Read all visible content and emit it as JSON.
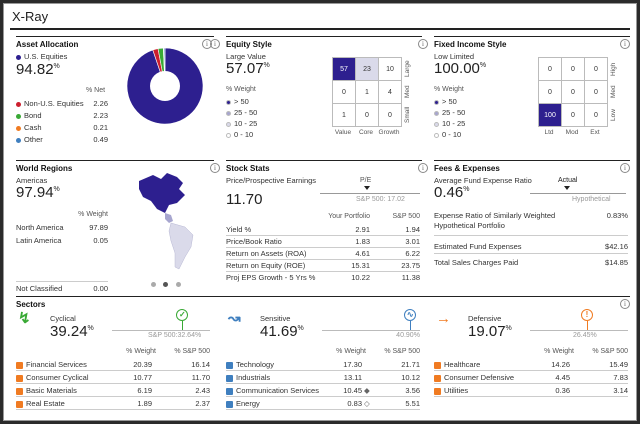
{
  "title": "X-Ray",
  "colors": {
    "navy": "#2d1f8f",
    "mid": "#a7a6cf",
    "light": "#dadaea",
    "red": "#cc1f2e",
    "orange": "#f07b22",
    "green": "#39a935",
    "blue": "#3f7fbf",
    "gray": "#888888"
  },
  "asset": {
    "title": "Asset Allocation",
    "main_label": "U.S. Equities",
    "main_value": "94.82",
    "pct": "%",
    "col": "% Net",
    "rows": [
      {
        "label": "Non-U.S. Equities",
        "value": "2.26",
        "color": "#cc1f2e"
      },
      {
        "label": "Bond",
        "value": "2.23",
        "color": "#39a935"
      },
      {
        "label": "Cash",
        "value": "0.21",
        "color": "#f07b22"
      },
      {
        "label": "Other",
        "value": "0.49",
        "color": "#3f7fbf"
      }
    ],
    "donut": [
      94.82,
      2.26,
      2.23,
      0.21,
      0.49
    ]
  },
  "equity": {
    "title": "Equity Style",
    "label": "Large Value",
    "value": "57.07",
    "pct": "%",
    "weight_label": "% Weight",
    "legend": [
      "> 50",
      "25 - 50",
      "10 - 25",
      "0 - 10"
    ],
    "grid": [
      "57",
      "23",
      "10",
      "0",
      "1",
      "4",
      "1",
      "0",
      "0"
    ],
    "cols": [
      "Value",
      "Core",
      "Growth"
    ],
    "rows": [
      "Large",
      "Med",
      "Small"
    ]
  },
  "fixed": {
    "title": "Fixed Income Style",
    "label": "Low Limited",
    "value": "100.00",
    "pct": "%",
    "weight_label": "% Weight",
    "legend": [
      "> 50",
      "25 - 50",
      "10 - 25",
      "0 - 10"
    ],
    "grid": [
      "0",
      "0",
      "0",
      "0",
      "0",
      "0",
      "100",
      "0",
      "0"
    ],
    "cols": [
      "Ltd",
      "Mod",
      "Ext"
    ],
    "rows": [
      "High",
      "Med",
      "Low"
    ]
  },
  "regions": {
    "title": "World Regions",
    "label": "Americas",
    "value": "97.94",
    "pct": "%",
    "col": "% Weight",
    "rows": [
      {
        "label": "North America",
        "value": "97.89"
      },
      {
        "label": "Latin America",
        "value": "0.05"
      }
    ],
    "not_classified": "Not Classified",
    "not_classified_value": "0.00"
  },
  "stock": {
    "title": "Stock Stats",
    "pe_title": "Price/Prospective Earnings",
    "pe_value": "11.70",
    "pe_marker": "P/E",
    "pe_sp": "S&P 500: 17.02",
    "col1": "Your Portfolio",
    "col2": "S&P 500",
    "rows": [
      {
        "label": "Yield %",
        "a": "2.91",
        "b": "1.94"
      },
      {
        "label": "Price/Book Ratio",
        "a": "1.83",
        "b": "3.01"
      },
      {
        "label": "Return on Assets (ROA)",
        "a": "4.61",
        "b": "6.22"
      },
      {
        "label": "Return on Equity (ROE)",
        "a": "15.31",
        "b": "23.75"
      },
      {
        "label": "Proj EPS Growth - 5 Yrs %",
        "a": "10.22",
        "b": "11.38"
      }
    ]
  },
  "fees": {
    "title": "Fees & Expenses",
    "label": "Average Fund Expense Ratio",
    "value": "0.46",
    "pct": "%",
    "actual": "Actual",
    "hypo": "Hypothetical",
    "r1_label": "Expense Ratio of Similarly Weighted Hypothetical Portfolio",
    "r1_value": "0.83%",
    "r2_label": "Estimated Fund Expenses",
    "r2_value": "$42.16",
    "r3_label": "Total Sales Charges Paid",
    "r3_value": "$14.85"
  },
  "sectors": {
    "title": "Sectors",
    "col1": "% Weight",
    "col2": "% S&P 500",
    "groups": [
      {
        "name": "Cyclical",
        "value": "39.24",
        "sp": "S&P 500:32.64%",
        "sp_frac": 0.3264,
        "items": [
          {
            "label": "Financial Services",
            "a": "20.39",
            "b": "16.14",
            "mark": ""
          },
          {
            "label": "Consumer Cyclical",
            "a": "10.77",
            "b": "11.70",
            "mark": ""
          },
          {
            "label": "Basic Materials",
            "a": "6.19",
            "b": "2.43",
            "mark": ""
          },
          {
            "label": "Real Estate",
            "a": "1.89",
            "b": "2.37",
            "mark": ""
          }
        ]
      },
      {
        "name": "Sensitive",
        "value": "41.69",
        "sp": "40.90%",
        "sp_frac": 0.409,
        "items": [
          {
            "label": "Technology",
            "a": "17.30",
            "b": "21.71",
            "mark": ""
          },
          {
            "label": "Industrials",
            "a": "13.11",
            "b": "10.12",
            "mark": ""
          },
          {
            "label": "Communication Services",
            "a": "10.45",
            "b": "3.56",
            "mark": "◆"
          },
          {
            "label": "Energy",
            "a": "0.83",
            "b": "5.51",
            "mark": "◇"
          }
        ]
      },
      {
        "name": "Defensive",
        "value": "19.07",
        "sp": "26.45%",
        "sp_frac": 0.2645,
        "items": [
          {
            "label": "Healthcare",
            "a": "14.26",
            "b": "15.49",
            "mark": ""
          },
          {
            "label": "Consumer Defensive",
            "a": "4.45",
            "b": "7.83",
            "mark": ""
          },
          {
            "label": "Utilities",
            "a": "0.36",
            "b": "3.14",
            "mark": ""
          }
        ]
      }
    ]
  }
}
